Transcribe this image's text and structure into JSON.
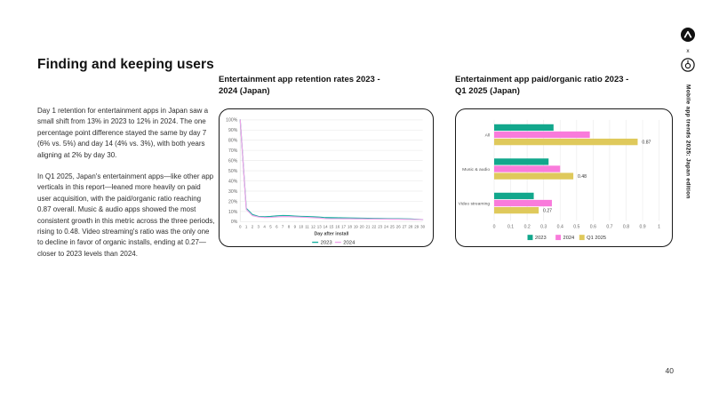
{
  "slide": {
    "heading": "Finding and keeping users",
    "paragraphs": [
      "Day 1 retention for entertainment apps in Japan saw a small shift from 13% in 2023 to 12% in 2024. The one percentage point difference stayed the same by day 7 (6% vs. 5%) and day 14 (4% vs. 3%), with both years aligning at 2% by day 30.",
      "In Q1 2025, Japan's entertainment apps—like other app verticals in this report—leaned more heavily on paid user acquisition, with the paid/organic ratio reaching 0.87 overall. Music & audio apps showed the most consistent growth in this metric across the three periods, rising to 0.48. Video streaming's ratio was the only one to decline in favor of organic installs, ending at 0.27—closer to 2023 levels than 2024."
    ],
    "sidebar": {
      "edition_label": "Mobile app trends 2025: Japan edition",
      "logo_separator": "x"
    },
    "page_number": "40"
  },
  "colors": {
    "teal": "#12a78c",
    "teal_line": "#17b0a0",
    "pink": "#f97bdb",
    "pink_line": "#f0a3e9",
    "yellow": "#dfc95b",
    "grid": "#ececec",
    "axis_text": "#666666",
    "border": "#1a1a1a"
  },
  "chart_data": [
    {
      "type": "line",
      "title": "Entertainment app retention rates 2023 -\n2024 (Japan)",
      "xlabel": "Day after install",
      "ylim": [
        0,
        100
      ],
      "y_ticks": [
        "100%",
        "90%",
        "80%",
        "70%",
        "60%",
        "50%",
        "40%",
        "30%",
        "20%",
        "10%",
        "0%"
      ],
      "x": [
        0,
        1,
        2,
        3,
        4,
        5,
        6,
        7,
        8,
        9,
        10,
        11,
        12,
        13,
        14,
        15,
        16,
        17,
        18,
        19,
        20,
        21,
        22,
        23,
        24,
        25,
        26,
        27,
        28,
        29,
        30
      ],
      "grid": "horizontal",
      "legend_position": "bottom",
      "series": [
        {
          "name": "2023",
          "color": "#17b0a0",
          "values": [
            100,
            13,
            7,
            5.2,
            4.8,
            5.1,
            5.7,
            6,
            5.9,
            5.5,
            5.2,
            5,
            4.8,
            4.5,
            4,
            3.9,
            3.8,
            3.7,
            3.6,
            3.5,
            3.4,
            3.3,
            3.2,
            3.1,
            3,
            2.9,
            2.8,
            2.7,
            2.6,
            2.3,
            2
          ]
        },
        {
          "name": "2024",
          "color": "#f0a3e9",
          "values": [
            100,
            12,
            6,
            4.6,
            4.1,
            4.2,
            4.6,
            5,
            4.9,
            4.7,
            4.4,
            4.2,
            3.9,
            3.6,
            3,
            2.9,
            2.9,
            2.8,
            2.8,
            2.7,
            2.7,
            2.6,
            2.6,
            2.5,
            2.5,
            2.4,
            2.4,
            2.3,
            2.2,
            2.1,
            2
          ]
        }
      ]
    },
    {
      "type": "bar",
      "orientation": "horizontal",
      "title": "Entertainment app paid/organic ratio  2023 -\nQ1 2025 (Japan)",
      "categories": [
        "All",
        "Music & audio",
        "Video streaming"
      ],
      "xlim": [
        0,
        1
      ],
      "x_ticks": [
        "0",
        "0.1",
        "0.2",
        "0.3",
        "0.4",
        "0.5",
        "0.6",
        "0.7",
        "0.8",
        "0.9",
        "1"
      ],
      "grid": "vertical",
      "legend_position": "bottom",
      "series": [
        {
          "name": "2023",
          "color": "#12a78c",
          "values": [
            0.36,
            0.33,
            0.24
          ]
        },
        {
          "name": "2024",
          "color": "#f97bdb",
          "values": [
            0.58,
            0.4,
            0.35
          ]
        },
        {
          "name": "Q1 2025",
          "color": "#dfc95b",
          "values": [
            0.87,
            0.48,
            0.27
          ],
          "show_value_labels": true
        }
      ]
    }
  ]
}
